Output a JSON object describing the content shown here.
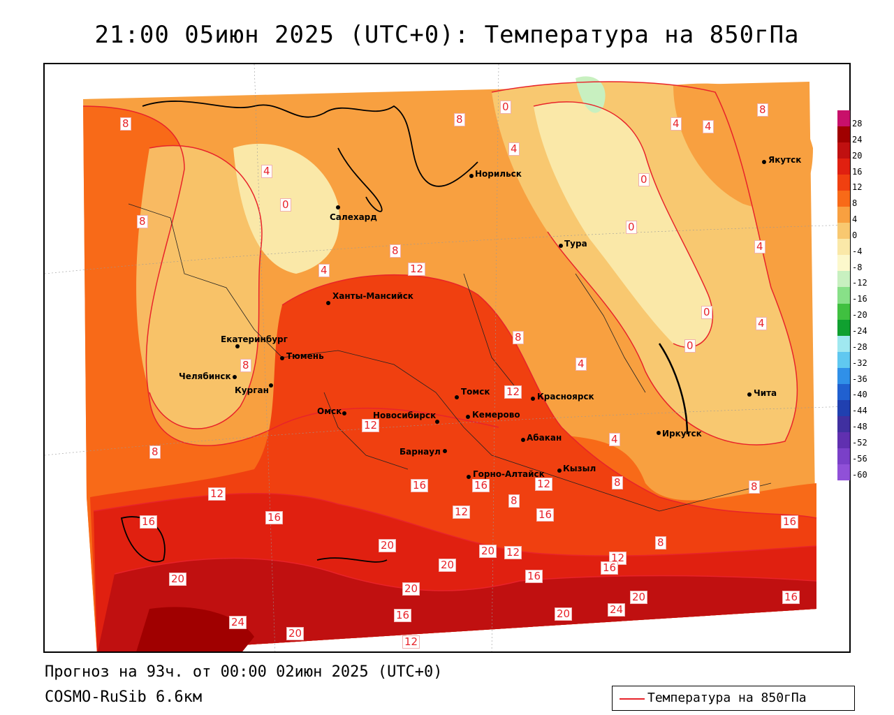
{
  "title": "21:00 05июн 2025 (UTC+0): Температура на 850гПа",
  "footer": {
    "forecast": "Прогноз на 93ч. от 00:00 02июн 2025 (UTC+0)",
    "model": "COSMO-RuSib 6.6км"
  },
  "legend": {
    "label": "Температура на 850гПа",
    "line_color": "#e8232a"
  },
  "colorbar": {
    "ticks": [
      "28",
      "24",
      "20",
      "16",
      "12",
      "8",
      "4",
      "0",
      "-4",
      "-8",
      "-12",
      "-16",
      "-20",
      "-24",
      "-28",
      "-32",
      "-36",
      "-40",
      "-44",
      "-48",
      "-52",
      "-56",
      "-60"
    ],
    "colors": [
      "#c8106a",
      "#a00000",
      "#c01010",
      "#e02010",
      "#f04010",
      "#f86a18",
      "#f8a040",
      "#f8c870",
      "#fae8a8",
      "#fcf8cc",
      "#c8f0c0",
      "#88e088",
      "#40c040",
      "#10a030",
      "#a0e8f0",
      "#60c8f0",
      "#3090e8",
      "#2060d0",
      "#2040b0",
      "#4030a0",
      "#6030b0",
      "#7a40c8",
      "#9050d8"
    ]
  },
  "cities": [
    {
      "name": "Норильск"
    },
    {
      "name": "Якутск"
    },
    {
      "name": "Салехард"
    },
    {
      "name": "Тура"
    },
    {
      "name": "Ханты-Мансийск"
    },
    {
      "name": "Екатеринбург"
    },
    {
      "name": "Тюмень"
    },
    {
      "name": "Челябинск"
    },
    {
      "name": "Курган"
    },
    {
      "name": "Омск"
    },
    {
      "name": "Новосибирск"
    },
    {
      "name": "Томск"
    },
    {
      "name": "Кемерово"
    },
    {
      "name": "Красноярск"
    },
    {
      "name": "Абакан"
    },
    {
      "name": "Барнаул"
    },
    {
      "name": "Горно-Алтайск"
    },
    {
      "name": "Кызыл"
    },
    {
      "name": "Иркутск"
    },
    {
      "name": "Чита"
    }
  ],
  "contour_labels": [
    "8",
    "0",
    "8",
    "4",
    "0",
    "4",
    "4",
    "8",
    "8",
    "0",
    "0",
    "4",
    "8",
    "4",
    "12",
    "8",
    "4",
    "0",
    "0",
    "4",
    "8",
    "4",
    "12",
    "8",
    "4",
    "8",
    "8",
    "12",
    "12",
    "16",
    "16",
    "12",
    "16",
    "12",
    "8",
    "16",
    "16",
    "20",
    "20",
    "12",
    "20",
    "12",
    "16",
    "8",
    "16",
    "20",
    "24",
    "20",
    "16",
    "20",
    "20",
    "16",
    "12",
    "24",
    "20",
    "16"
  ]
}
